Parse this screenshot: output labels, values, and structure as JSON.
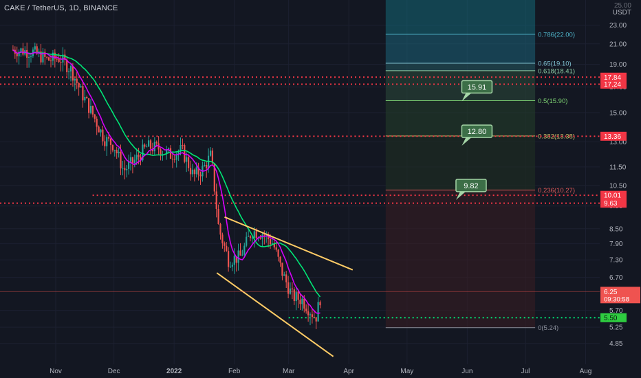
{
  "header": {
    "symbol": "CAKE / TetherUS, 1D, BINANCE",
    "currency": "USDT",
    "axis_top_partial": "25.00"
  },
  "chart_data": {
    "type": "candlestick",
    "y_scale": "log",
    "ylim": [
      4.5,
      25.5
    ],
    "y_ticks": [
      "23.00",
      "21.00",
      "19.00",
      "17.00",
      "15.00",
      "13.00",
      "11.50",
      "10.50",
      "9.50",
      "8.50",
      "7.90",
      "7.30",
      "6.70",
      "5.70",
      "5.25",
      "4.85"
    ],
    "x_ticks": [
      "Nov",
      "Dec",
      "2022",
      "Feb",
      "Mar",
      "Apr",
      "May",
      "Jun",
      "Jul",
      "Aug"
    ],
    "price_series": [
      {
        "date": "2021-10-10",
        "price": 20.4
      },
      {
        "date": "2021-10-20",
        "price": 20.2
      },
      {
        "date": "2021-10-28",
        "price": 19.4
      },
      {
        "date": "2021-11-03",
        "price": 19.6
      },
      {
        "date": "2021-11-09",
        "price": 18.5
      },
      {
        "date": "2021-11-14",
        "price": 16.6
      },
      {
        "date": "2021-11-20",
        "price": 14.9
      },
      {
        "date": "2021-11-26",
        "price": 13.2
      },
      {
        "date": "2021-12-01",
        "price": 12.8
      },
      {
        "date": "2021-12-06",
        "price": 11.3
      },
      {
        "date": "2021-12-12",
        "price": 11.9
      },
      {
        "date": "2021-12-18",
        "price": 12.7
      },
      {
        "date": "2021-12-24",
        "price": 12.6
      },
      {
        "date": "2021-12-30",
        "price": 12.2
      },
      {
        "date": "2022-01-05",
        "price": 12.5
      },
      {
        "date": "2022-01-11",
        "price": 11.0
      },
      {
        "date": "2022-01-16",
        "price": 11.4
      },
      {
        "date": "2022-01-20",
        "price": 12.2
      },
      {
        "date": "2022-01-24",
        "price": 8.5
      },
      {
        "date": "2022-01-29",
        "price": 7.3
      },
      {
        "date": "2022-02-04",
        "price": 7.4
      },
      {
        "date": "2022-02-10",
        "price": 8.4
      },
      {
        "date": "2022-02-16",
        "price": 8.3
      },
      {
        "date": "2022-02-21",
        "price": 7.9
      },
      {
        "date": "2022-02-26",
        "price": 6.8
      },
      {
        "date": "2022-03-03",
        "price": 6.1
      },
      {
        "date": "2022-03-08",
        "price": 6.0
      },
      {
        "date": "2022-03-12",
        "price": 5.7
      },
      {
        "date": "2022-03-15",
        "price": 5.5
      },
      {
        "date": "2022-03-18",
        "price": 6.25
      }
    ],
    "horizontal_levels": [
      {
        "label": "17.84",
        "price": 17.84
      },
      {
        "label": "17.24",
        "price": 17.24
      },
      {
        "label": "13.36",
        "price": 13.36
      },
      {
        "label": "10.01",
        "price": 10.01
      },
      {
        "label": "9.63",
        "price": 9.63
      },
      {
        "label": "5.50",
        "price": 5.5
      }
    ],
    "current_price": {
      "label": "6.25",
      "countdown": "09:30:58"
    },
    "fib_levels": [
      {
        "label": "0.786(22.00)",
        "price": 22.0
      },
      {
        "label": "0.65(19.10)",
        "price": 19.1
      },
      {
        "label": "0.618(18.41)",
        "price": 18.41
      },
      {
        "label": "0.5(15.90)",
        "price": 15.9
      },
      {
        "label": "0.382(13.38)",
        "price": 13.38
      },
      {
        "label": "0.236(10.27)",
        "price": 10.27
      },
      {
        "label": "0(5.24)",
        "price": 5.24
      }
    ],
    "targets": [
      {
        "label": "15.91",
        "price": 15.91
      },
      {
        "label": "12.80",
        "price": 12.8
      },
      {
        "label": "9.82",
        "price": 9.82
      }
    ],
    "colors": {
      "background": "#131722",
      "up": "#26a69a",
      "down": "#ef5350",
      "ma_fast": "#d500f9",
      "ma_slow": "#00e676",
      "wedge": "#ffcc66",
      "resistance": "#f23645",
      "support": "#00e676",
      "target_box": "#a5d6a7"
    }
  }
}
